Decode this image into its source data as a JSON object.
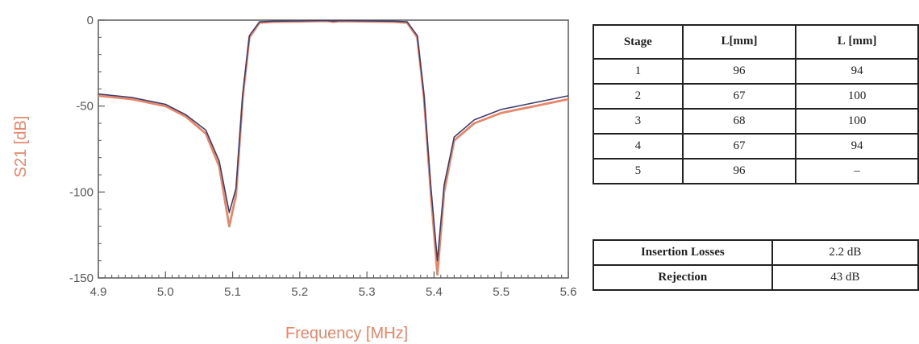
{
  "chart_data": {
    "type": "line",
    "xlabel": "Frequency [MHz]",
    "ylabel": "S21 [dB]",
    "xlim": [
      4.9,
      5.6
    ],
    "ylim": [
      -150,
      0
    ],
    "x_ticks": [
      "4.9",
      "5.0",
      "5.1",
      "5.2",
      "5.3",
      "5.4",
      "5.5",
      "5.6"
    ],
    "y_ticks": [
      "0",
      "-50",
      "-100",
      "-150"
    ],
    "grid": false,
    "series": [
      {
        "color": "#e8866a",
        "x": [
          4.9,
          4.95,
          5.0,
          5.03,
          5.06,
          5.08,
          5.095,
          5.105,
          5.115,
          5.125,
          5.14,
          5.16,
          5.2,
          5.24,
          5.25,
          5.26,
          5.3,
          5.34,
          5.36,
          5.375,
          5.385,
          5.395,
          5.405,
          5.415,
          5.43,
          5.46,
          5.5,
          5.55,
          5.6
        ],
        "values": [
          -44,
          -46,
          -50,
          -56,
          -66,
          -85,
          -120,
          -102,
          -45,
          -10,
          -1.5,
          -1.0,
          -0.8,
          -0.5,
          -1.0,
          -0.6,
          -0.8,
          -1.0,
          -1.5,
          -10,
          -45,
          -100,
          -148,
          -100,
          -70,
          -60,
          -54,
          -50,
          -46
        ]
      },
      {
        "color": "#3f3f6e",
        "x": [
          4.9,
          4.95,
          5.0,
          5.03,
          5.06,
          5.08,
          5.095,
          5.105,
          5.115,
          5.125,
          5.14,
          5.16,
          5.2,
          5.24,
          5.25,
          5.26,
          5.3,
          5.34,
          5.36,
          5.375,
          5.385,
          5.395,
          5.405,
          5.415,
          5.43,
          5.46,
          5.5,
          5.55,
          5.6
        ],
        "values": [
          -43,
          -45,
          -49,
          -55,
          -64,
          -82,
          -112,
          -98,
          -43,
          -9,
          -1.0,
          -0.6,
          -0.4,
          -0.2,
          -0.6,
          -0.3,
          -0.4,
          -0.6,
          -1.0,
          -9,
          -43,
          -96,
          -140,
          -96,
          -68,
          -58,
          -52,
          -48,
          -44
        ]
      }
    ]
  },
  "stage_table": {
    "headers": [
      "Stage",
      "L",
      "[mm]",
      "L",
      "[mm]"
    ],
    "header_subs": [
      "",
      "",
      ""
    ],
    "rows": [
      [
        "1",
        "96",
        "94"
      ],
      [
        "2",
        "67",
        "100"
      ],
      [
        "3",
        "68",
        "100"
      ],
      [
        "4",
        "67",
        "94"
      ],
      [
        "5",
        "96",
        "–"
      ]
    ]
  },
  "perf_table": {
    "rows": [
      [
        "Insertion Losses",
        "2.2 dB"
      ],
      [
        "Rejection",
        "43 dB"
      ]
    ]
  }
}
